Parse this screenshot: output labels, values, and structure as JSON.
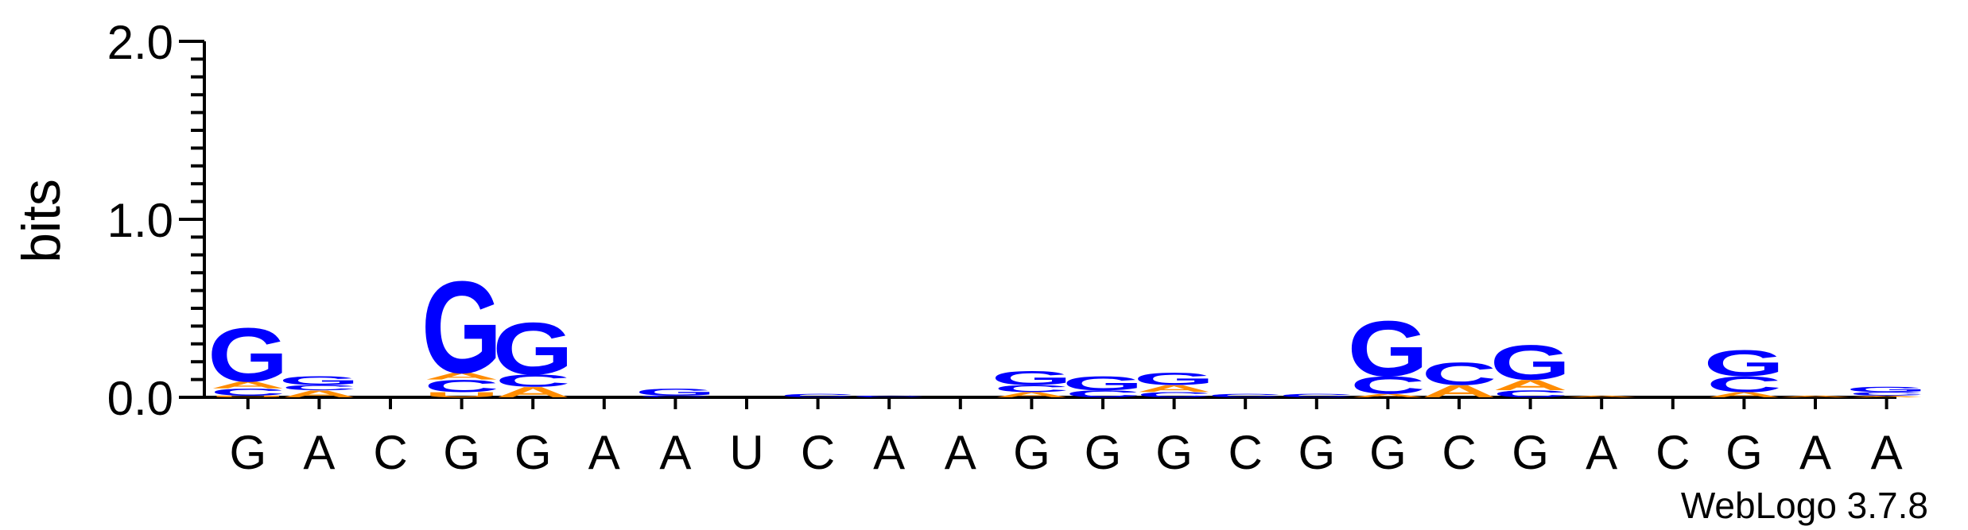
{
  "credit": "WebLogo 3.7.8",
  "colors": {
    "A": "#ff8c00",
    "C": "#0000ff",
    "G": "#0000ff",
    "U": "#ff8c00",
    "axis": "#000000"
  },
  "chart_data": {
    "type": "sequence-logo",
    "ylabel": "bits",
    "ylim": [
      0,
      2.0
    ],
    "yticks": [
      "0.0",
      "1.0",
      "2.0"
    ],
    "xlabels": [
      "G",
      "A",
      "C",
      "G",
      "G",
      "A",
      "A",
      "U",
      "C",
      "A",
      "A",
      "G",
      "G",
      "G",
      "C",
      "G",
      "G",
      "C",
      "G",
      "A",
      "C",
      "G",
      "A",
      "A"
    ],
    "columns": [
      [
        {
          "l": "U",
          "h": 0.01
        },
        {
          "l": "C",
          "h": 0.04
        },
        {
          "l": "A",
          "h": 0.04
        },
        {
          "l": "G",
          "h": 0.31
        }
      ],
      [
        {
          "l": "A",
          "h": 0.04
        },
        {
          "l": "C",
          "h": 0.03
        },
        {
          "l": "G",
          "h": 0.05
        }
      ],
      [],
      [
        {
          "l": "U",
          "h": 0.03
        },
        {
          "l": "C",
          "h": 0.07
        },
        {
          "l": "A",
          "h": 0.04
        },
        {
          "l": "G",
          "h": 0.53
        }
      ],
      [
        {
          "l": "A",
          "h": 0.06
        },
        {
          "l": "C",
          "h": 0.07
        },
        {
          "l": "G",
          "h": 0.3
        }
      ],
      [],
      [
        {
          "l": "C",
          "h": 0.01
        },
        {
          "l": "G",
          "h": 0.04
        }
      ],
      [],
      [
        {
          "l": "C",
          "h": 0.02
        }
      ],
      [
        {
          "l": "C",
          "h": 0.01
        }
      ],
      [],
      [
        {
          "l": "A",
          "h": 0.03
        },
        {
          "l": "C",
          "h": 0.04
        },
        {
          "l": "G",
          "h": 0.08
        }
      ],
      [
        {
          "l": "C",
          "h": 0.04
        },
        {
          "l": "G",
          "h": 0.08
        }
      ],
      [
        {
          "l": "C",
          "h": 0.03
        },
        {
          "l": "A",
          "h": 0.04
        },
        {
          "l": "G",
          "h": 0.07
        }
      ],
      [
        {
          "l": "C",
          "h": 0.02
        }
      ],
      [
        {
          "l": "C",
          "h": 0.02
        }
      ],
      [
        {
          "l": "A",
          "h": 0.02
        },
        {
          "l": "C",
          "h": 0.1
        },
        {
          "l": "G",
          "h": 0.32
        }
      ],
      [
        {
          "l": "A",
          "h": 0.07
        },
        {
          "l": "C",
          "h": 0.13
        }
      ],
      [
        {
          "l": "C",
          "h": 0.04
        },
        {
          "l": "A",
          "h": 0.06
        },
        {
          "l": "G",
          "h": 0.2
        }
      ],
      [
        {
          "l": "A",
          "h": 0.01
        }
      ],
      [],
      [
        {
          "l": "A",
          "h": 0.03
        },
        {
          "l": "C",
          "h": 0.09
        },
        {
          "l": "G",
          "h": 0.15
        }
      ],
      [
        {
          "l": "A",
          "h": 0.01
        }
      ],
      [
        {
          "l": "A",
          "h": 0.01
        },
        {
          "l": "C",
          "h": 0.02
        },
        {
          "l": "G",
          "h": 0.03
        }
      ]
    ]
  }
}
